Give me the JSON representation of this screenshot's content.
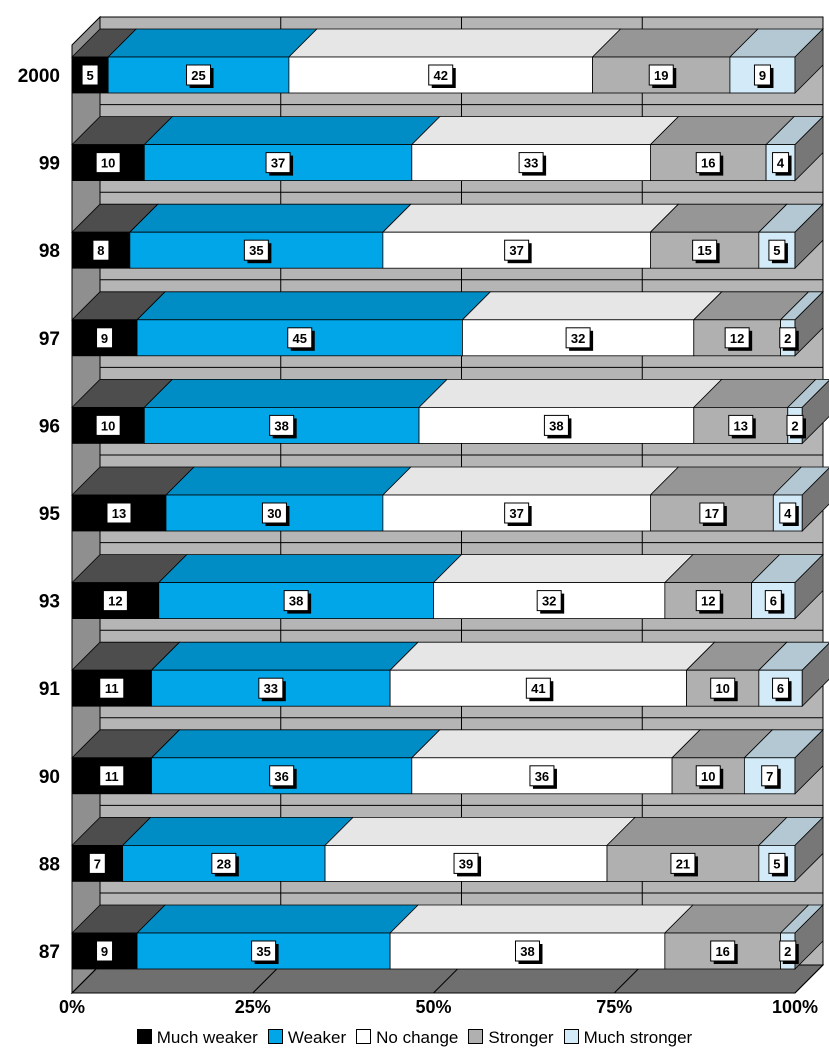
{
  "chart_data": {
    "type": "bar",
    "orientation": "horizontal",
    "stacked": true,
    "percent": true,
    "three_d": true,
    "categories": [
      "2000",
      "99",
      "98",
      "97",
      "96",
      "95",
      "93",
      "91",
      "90",
      "88",
      "87"
    ],
    "series": [
      {
        "name": "Much weaker",
        "color": "#000000",
        "values": [
          5,
          10,
          8,
          9,
          10,
          13,
          12,
          11,
          11,
          7,
          9
        ]
      },
      {
        "name": "Weaker",
        "color": "#00a6e8",
        "values": [
          25,
          37,
          35,
          45,
          38,
          30,
          38,
          33,
          36,
          28,
          35
        ]
      },
      {
        "name": "No change",
        "color": "#ffffff",
        "values": [
          42,
          33,
          37,
          32,
          38,
          37,
          32,
          41,
          36,
          39,
          38
        ]
      },
      {
        "name": "Stronger",
        "color": "#b0b0b0",
        "values": [
          19,
          16,
          15,
          12,
          13,
          17,
          12,
          10,
          10,
          21,
          16
        ]
      },
      {
        "name": "Much stronger",
        "color": "#d3ebf8",
        "values": [
          9,
          4,
          5,
          2,
          2,
          4,
          6,
          6,
          7,
          5,
          2
        ]
      }
    ],
    "x_ticks": [
      "0%",
      "25%",
      "50%",
      "75%",
      "100%"
    ],
    "xlim": [
      0,
      100
    ],
    "grid": true,
    "legend_position": "bottom"
  }
}
